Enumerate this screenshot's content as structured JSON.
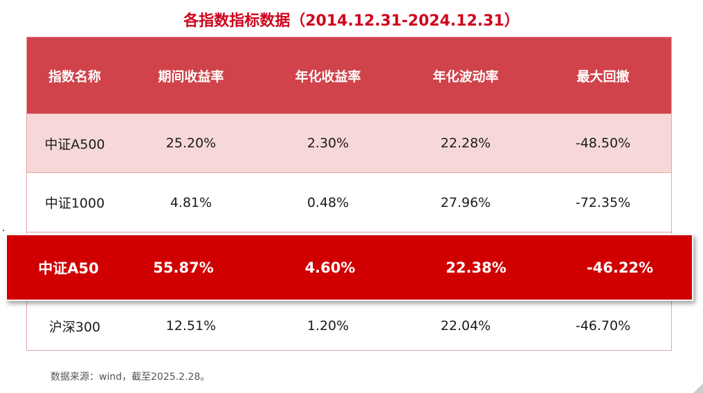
{
  "title": "各指数指标数据（2014.12.31-2024.12.31）",
  "table": {
    "headers": [
      "指数名称",
      "期间收益率",
      "年化收益率",
      "年化波动率",
      "最大回撤"
    ],
    "rows": [
      [
        "中证A500",
        "25.20%",
        "2.30%",
        "22.28%",
        "-48.50%"
      ],
      [
        "中证1000",
        "4.81%",
        "0.48%",
        "27.96%",
        "-72.35%"
      ],
      [
        "中证A50",
        "55.87%",
        "4.60%",
        "22.38%",
        "-46.22%"
      ],
      [
        "沪深300",
        "12.51%",
        "1.20%",
        "22.04%",
        "-46.70%"
      ]
    ]
  },
  "footnote": "数据来源：wind，截至2025.2.28。",
  "colors": {
    "title": "#d0021b",
    "header_bg": "#d0434b",
    "highlight_row_bg": "#d10000",
    "first_row_bg": "#f7d8d9"
  }
}
